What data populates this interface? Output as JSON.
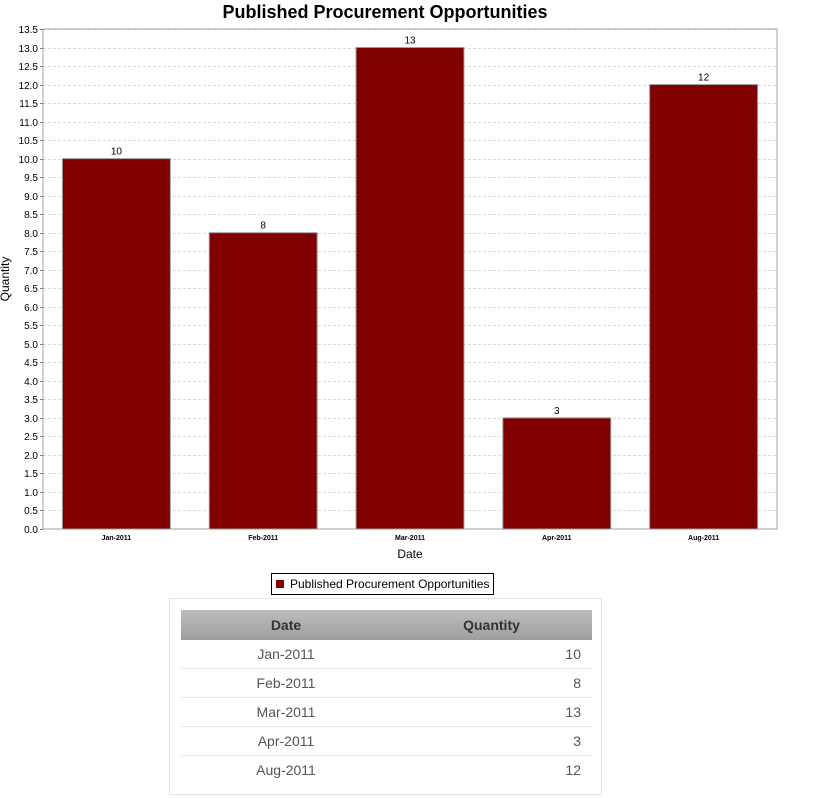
{
  "colors": {
    "bar": "#800000",
    "gridline": "#d9d9d9"
  },
  "chart_data": {
    "type": "bar",
    "title": "Published Procurement Opportunities",
    "xlabel": "Date",
    "ylabel": "Quantity",
    "categories": [
      "Jan-2011",
      "Feb-2011",
      "Mar-2011",
      "Apr-2011",
      "Aug-2011"
    ],
    "series": [
      {
        "name": "Published Procurement Opportunities",
        "values": [
          10,
          8,
          13,
          3,
          12
        ]
      }
    ],
    "ylim": [
      0,
      13.5
    ],
    "ytick_step": 0.5,
    "grid": true,
    "legend": "bottom-center",
    "data_labels": true
  },
  "table": {
    "headers": {
      "date": "Date",
      "quantity": "Quantity"
    },
    "rows": [
      {
        "date": "Jan-2011",
        "quantity": "10"
      },
      {
        "date": "Feb-2011",
        "quantity": "8"
      },
      {
        "date": "Mar-2011",
        "quantity": "13"
      },
      {
        "date": "Apr-2011",
        "quantity": "3"
      },
      {
        "date": "Aug-2011",
        "quantity": "12"
      }
    ]
  }
}
